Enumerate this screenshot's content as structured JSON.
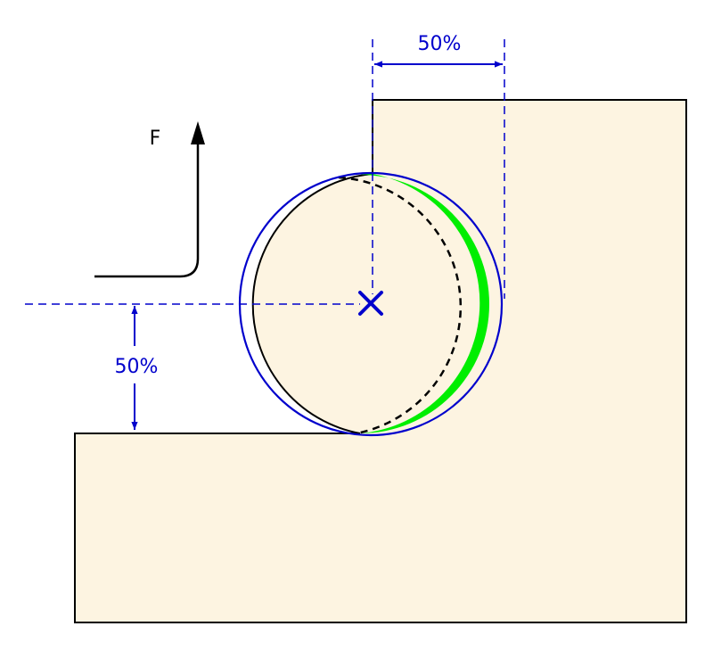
{
  "labels": {
    "force": "F",
    "horizontal_pct": "50%",
    "vertical_pct": "50%"
  },
  "colors": {
    "workpiece_fill": "#fdf4e1",
    "outline": "#000000",
    "dimension": "#0000cc",
    "tool": "#0000cc",
    "engagement": "#00ee00"
  }
}
